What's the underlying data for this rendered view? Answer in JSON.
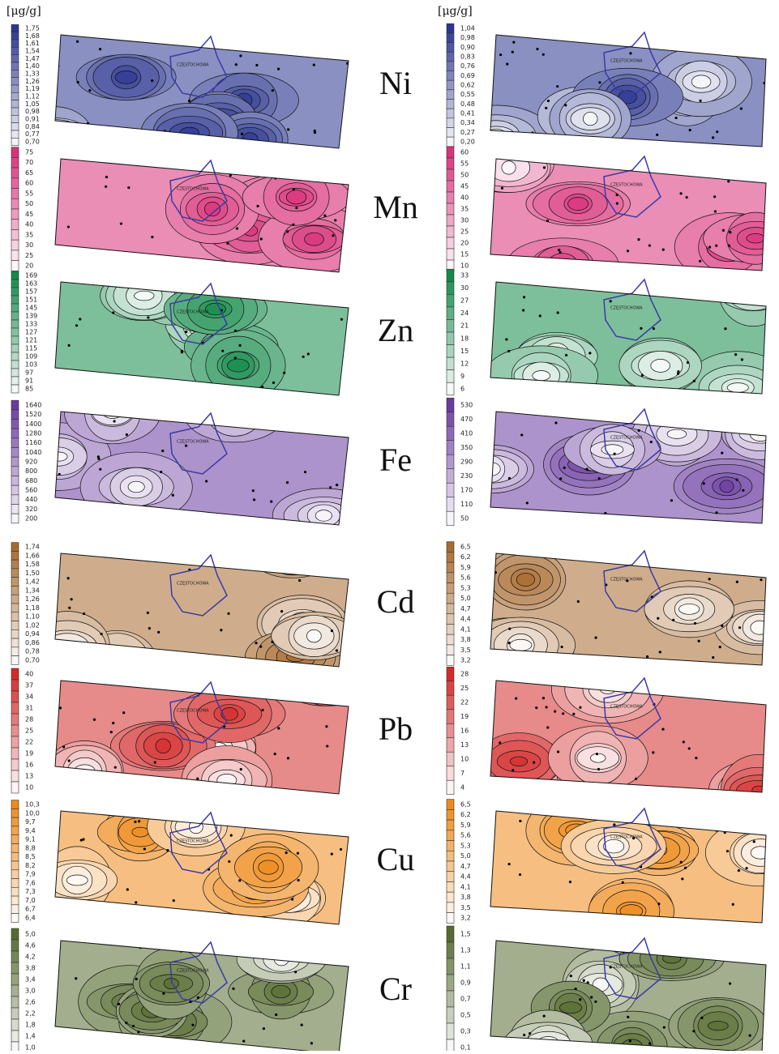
{
  "unit": "[μg/g]",
  "city_label": "CZĘSTOCHOWA",
  "rows": [
    {
      "element": "Ni",
      "color": "#2b3690",
      "left_legend": [
        "1,75",
        "1,68",
        "1,61",
        "1,54",
        "1,47",
        "1,40",
        "1,33",
        "1,26",
        "1,19",
        "1,12",
        "1,05",
        "0,98",
        "0,91",
        "0,84",
        "0,77",
        "0,70"
      ],
      "right_legend": [
        "1,04",
        "0,98",
        "0,90",
        "0,83",
        "0,76",
        "0,69",
        "0,62",
        "0,55",
        "0,48",
        "0,41",
        "0,34",
        "0,27",
        "0,20"
      ]
    },
    {
      "element": "Mn",
      "color": "#d9327a",
      "left_legend": [
        "75",
        "70",
        "65",
        "60",
        "55",
        "50",
        "45",
        "40",
        "35",
        "30",
        "25",
        "20"
      ],
      "right_legend": [
        "60",
        "55",
        "50",
        "45",
        "40",
        "35",
        "30",
        "25",
        "20",
        "15",
        "10"
      ]
    },
    {
      "element": "Zn",
      "color": "#138a4a",
      "left_legend": [
        "169",
        "163",
        "157",
        "151",
        "145",
        "139",
        "133",
        "127",
        "121",
        "115",
        "109",
        "103",
        "97",
        "91",
        "85"
      ],
      "right_legend": [
        "33",
        "30",
        "27",
        "24",
        "21",
        "18",
        "15",
        "12",
        "9",
        "6"
      ]
    },
    {
      "element": "Fe",
      "color": "#6a3aa0",
      "left_legend": [
        "1640",
        "1520",
        "1400",
        "1280",
        "1160",
        "1040",
        "920",
        "800",
        "680",
        "560",
        "440",
        "320",
        "200"
      ],
      "right_legend": [
        "530",
        "470",
        "410",
        "350",
        "290",
        "230",
        "170",
        "110",
        "50"
      ]
    },
    {
      "element": "Cd",
      "color": "#a86a2e",
      "left_legend": [
        "1,74",
        "1,66",
        "1,58",
        "1,50",
        "1,42",
        "1,34",
        "1,26",
        "1,18",
        "1,10",
        "1,02",
        "0,94",
        "0,86",
        "0,78",
        "0,70"
      ],
      "right_legend": [
        "6,5",
        "6,2",
        "5,9",
        "5,6",
        "5,3",
        "5,0",
        "4,7",
        "4,4",
        "4,1",
        "3,8",
        "3,5",
        "3,2"
      ]
    },
    {
      "element": "Pb",
      "color": "#d42a2a",
      "left_legend": [
        "40",
        "37",
        "34",
        "31",
        "28",
        "25",
        "22",
        "19",
        "16",
        "13",
        "10"
      ],
      "right_legend": [
        "28",
        "25",
        "22",
        "19",
        "16",
        "13",
        "10",
        "7",
        "4"
      ]
    },
    {
      "element": "Cu",
      "color": "#ee8a1a",
      "left_legend": [
        "10,3",
        "10,0",
        "9,7",
        "9,4",
        "9,1",
        "8,8",
        "8,5",
        "8,2",
        "7,9",
        "7,6",
        "7,3",
        "7,0",
        "6,7",
        "6,4"
      ],
      "right_legend": [
        "6,5",
        "6,2",
        "5,9",
        "5,6",
        "5,3",
        "5,0",
        "4,7",
        "4,4",
        "4,1",
        "3,8",
        "3,5",
        "3,2"
      ]
    },
    {
      "element": "Cr",
      "color": "#556b2f",
      "left_legend": [
        "5,0",
        "4,6",
        "4,2",
        "3,8",
        "3,4",
        "3,0",
        "2,6",
        "2,2",
        "1,8",
        "1,4",
        "1,0"
      ],
      "right_legend": [
        "1,5",
        "1,3",
        "1,1",
        "0,9",
        "0,7",
        "0,5",
        "0,3",
        "0,1"
      ]
    }
  ]
}
